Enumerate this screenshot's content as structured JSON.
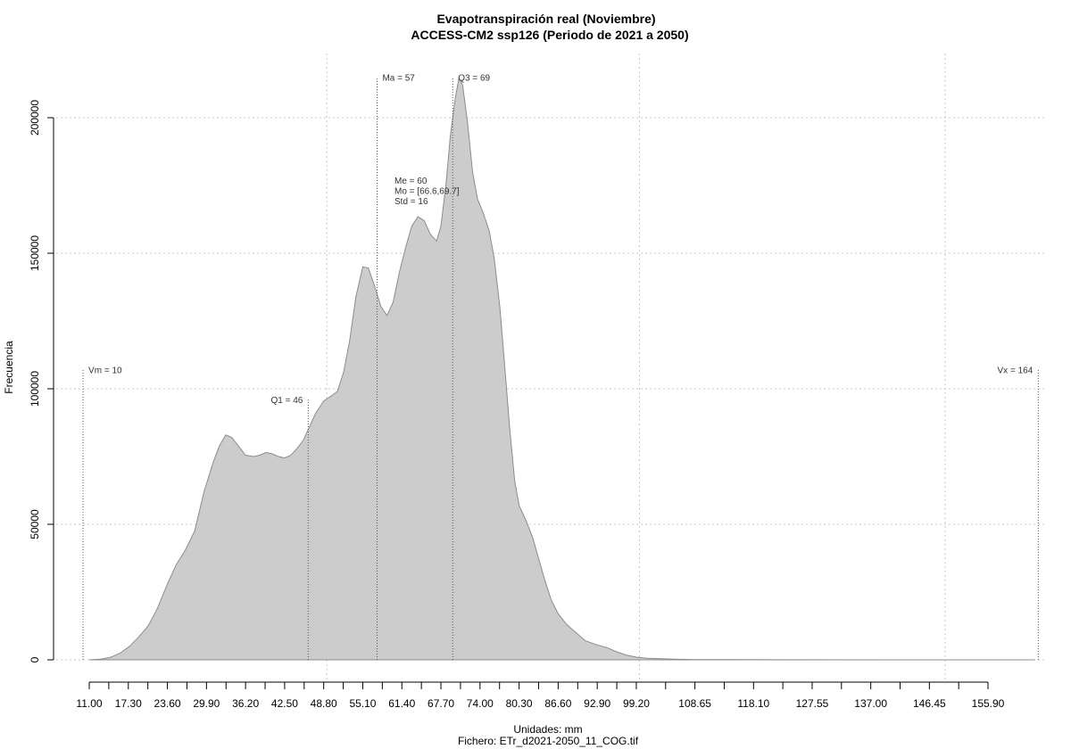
{
  "chart_data": {
    "type": "area",
    "title": "Evapotranspiración real (Noviembre)",
    "subtitle": "ACCESS-CM2 ssp126 (Periodo de 2021 a 2050)",
    "xlabel": "Unidades: mm",
    "caption": "Fichero: ETr_d2021-2050_11_COG.tif",
    "ylabel": "Frecuencia",
    "xlim": [
      5,
      170
    ],
    "ylim": [
      0,
      215000
    ],
    "grid": true,
    "fill_color": "#cccccc",
    "line_color": "#8c8c8c",
    "x_ticks": [
      {
        "value": 11.0,
        "label": "11.00"
      },
      {
        "value": 17.3,
        "label": "17.30"
      },
      {
        "value": 23.6,
        "label": "23.60"
      },
      {
        "value": 29.9,
        "label": "29.90"
      },
      {
        "value": 36.2,
        "label": "36.20"
      },
      {
        "value": 42.5,
        "label": "42.50"
      },
      {
        "value": 48.8,
        "label": "48.80"
      },
      {
        "value": 55.1,
        "label": "55.10"
      },
      {
        "value": 61.4,
        "label": "61.40"
      },
      {
        "value": 67.7,
        "label": "67.70"
      },
      {
        "value": 74.0,
        "label": "74.00"
      },
      {
        "value": 80.3,
        "label": "80.30"
      },
      {
        "value": 86.6,
        "label": "86.60"
      },
      {
        "value": 92.9,
        "label": "92.90"
      },
      {
        "value": 99.2,
        "label": "99.20"
      },
      {
        "value": 108.65,
        "label": "108.65"
      },
      {
        "value": 118.1,
        "label": "118.10"
      },
      {
        "value": 127.55,
        "label": "127.55"
      },
      {
        "value": 137.0,
        "label": "137.00"
      },
      {
        "value": 146.45,
        "label": "146.45"
      },
      {
        "value": 155.9,
        "label": "155.90"
      }
    ],
    "y_ticks": [
      {
        "value": 0,
        "label": "0"
      },
      {
        "value": 50000,
        "label": "50000"
      },
      {
        "value": 100000,
        "label": "100000"
      },
      {
        "value": 150000,
        "label": "150000"
      },
      {
        "value": 200000,
        "label": "200000"
      }
    ],
    "x_grid": [
      49.3,
      99.7,
      149.0
    ],
    "y_grid": [
      0,
      50000,
      100000,
      150000,
      200000
    ],
    "points": [
      [
        11.0,
        0
      ],
      [
        13.0,
        300
      ],
      [
        14.5,
        1000
      ],
      [
        16.0,
        2500
      ],
      [
        17.5,
        5000
      ],
      [
        19.0,
        8500
      ],
      [
        20.5,
        12500
      ],
      [
        22.0,
        19000
      ],
      [
        23.6,
        28000
      ],
      [
        25.0,
        35000
      ],
      [
        26.5,
        40500
      ],
      [
        28.0,
        47500
      ],
      [
        29.5,
        62000
      ],
      [
        31.0,
        73000
      ],
      [
        32.0,
        79000
      ],
      [
        33.0,
        83000
      ],
      [
        34.0,
        82000
      ],
      [
        35.0,
        79000
      ],
      [
        36.2,
        75500
      ],
      [
        37.5,
        75000
      ],
      [
        38.5,
        75500
      ],
      [
        39.5,
        76500
      ],
      [
        40.5,
        76000
      ],
      [
        41.5,
        75000
      ],
      [
        42.5,
        74500
      ],
      [
        43.5,
        75500
      ],
      [
        44.5,
        78000
      ],
      [
        45.5,
        81000
      ],
      [
        46.5,
        86000
      ],
      [
        47.5,
        91000
      ],
      [
        48.8,
        95500
      ],
      [
        49.8,
        97000
      ],
      [
        51.0,
        99000
      ],
      [
        52.0,
        106000
      ],
      [
        53.0,
        118000
      ],
      [
        54.0,
        134000
      ],
      [
        55.1,
        145000
      ],
      [
        56.0,
        144500
      ],
      [
        57.0,
        138000
      ],
      [
        58.0,
        130500
      ],
      [
        59.0,
        127000
      ],
      [
        60.0,
        132000
      ],
      [
        61.0,
        143000
      ],
      [
        62.0,
        152000
      ],
      [
        63.0,
        160000
      ],
      [
        64.0,
        163500
      ],
      [
        65.0,
        162000
      ],
      [
        66.0,
        157000
      ],
      [
        67.0,
        154500
      ],
      [
        67.7,
        160000
      ],
      [
        68.5,
        175000
      ],
      [
        69.2,
        193000
      ],
      [
        70.0,
        207000
      ],
      [
        70.6,
        214500
      ],
      [
        71.2,
        212000
      ],
      [
        72.0,
        198000
      ],
      [
        72.8,
        180000
      ],
      [
        73.6,
        170000
      ],
      [
        74.5,
        165000
      ],
      [
        75.5,
        158000
      ],
      [
        76.3,
        148000
      ],
      [
        77.2,
        130000
      ],
      [
        78.0,
        108000
      ],
      [
        78.8,
        85000
      ],
      [
        79.6,
        66000
      ],
      [
        80.3,
        57000
      ],
      [
        81.5,
        51000
      ],
      [
        82.5,
        45000
      ],
      [
        83.5,
        37000
      ],
      [
        84.5,
        29000
      ],
      [
        85.5,
        22000
      ],
      [
        86.6,
        17000
      ],
      [
        88.0,
        13000
      ],
      [
        89.5,
        10000
      ],
      [
        91.0,
        7000
      ],
      [
        92.9,
        5500
      ],
      [
        94.5,
        4500
      ],
      [
        96.0,
        3000
      ],
      [
        97.5,
        1800
      ],
      [
        99.2,
        1000
      ],
      [
        101.0,
        600
      ],
      [
        103.0,
        400
      ],
      [
        106.0,
        200
      ],
      [
        108.65,
        100
      ],
      [
        115.0,
        50
      ],
      [
        125.0,
        20
      ],
      [
        140.0,
        10
      ],
      [
        155.0,
        5
      ],
      [
        163.5,
        0
      ]
    ],
    "annotations": [
      {
        "x": 10.0,
        "top": 107000,
        "text": "Vm = 10",
        "side": "right"
      },
      {
        "x": 46.3,
        "top": 96000,
        "text": "Q1 = 46",
        "side": "left"
      },
      {
        "x": 57.4,
        "top": 215000,
        "text": "Ma = 57",
        "side": "right"
      },
      {
        "x": 69.6,
        "top": 215000,
        "text": "Q3 = 69",
        "side": "right"
      },
      {
        "x": 164.0,
        "top": 107000,
        "text": "Vx = 164",
        "side": "left"
      }
    ],
    "stats": [
      "Me = 60",
      "Mo = [66.6,69.7]",
      "Std = 16"
    ]
  }
}
